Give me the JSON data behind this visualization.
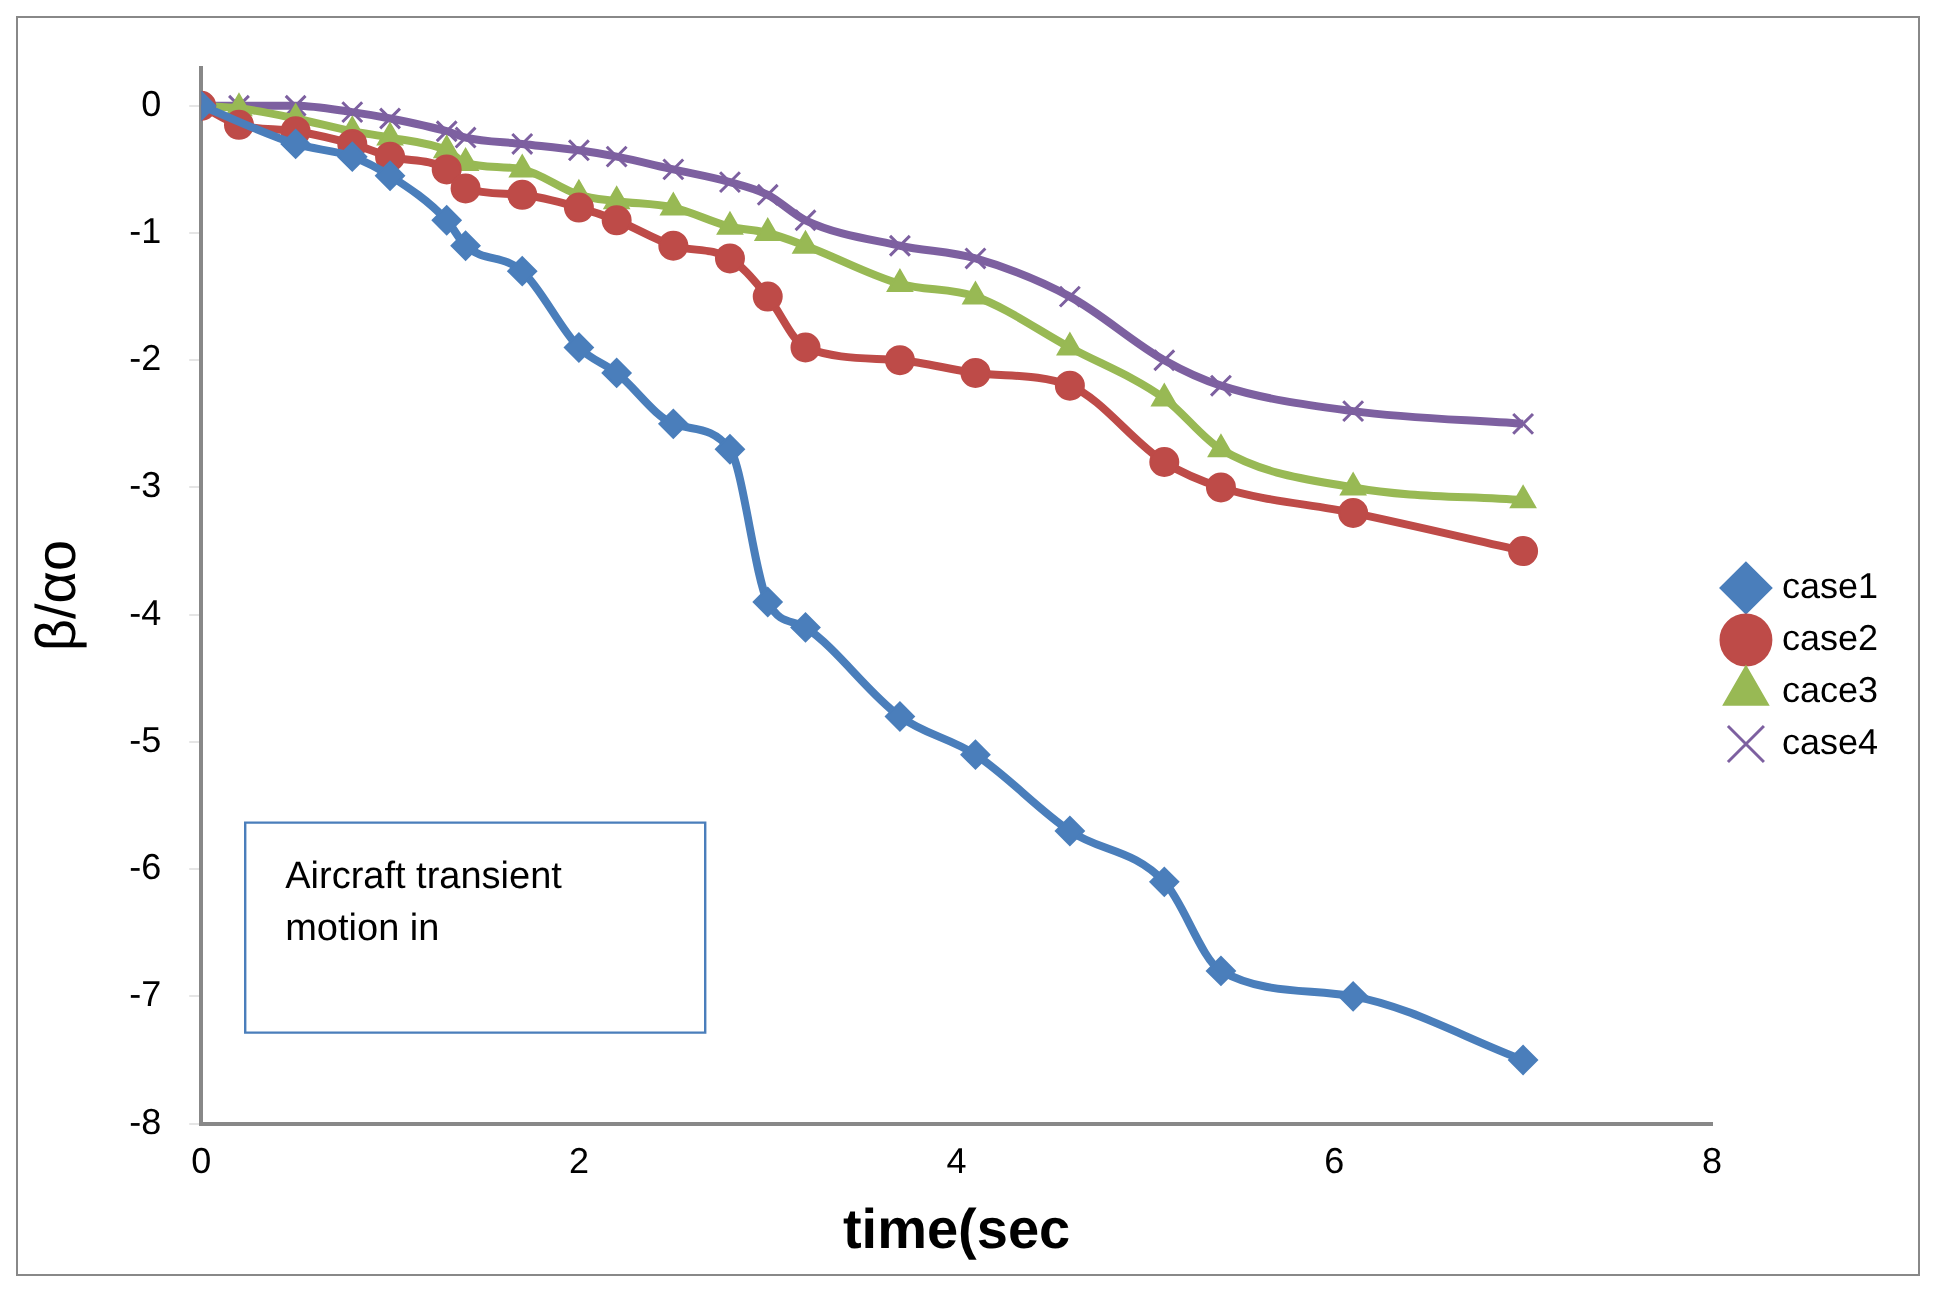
{
  "chart_data": {
    "type": "line",
    "xlabel": "time(sec",
    "ylabel": "β/αo",
    "xlim": [
      0,
      8
    ],
    "xticks": [
      0,
      2,
      4,
      6,
      8
    ],
    "ylim": [
      -8,
      0.3
    ],
    "yticks": [
      0,
      -1,
      -2,
      -3,
      -4,
      -5,
      -6,
      -7,
      -8
    ],
    "grid": false,
    "legend": "right",
    "line_style": "solid",
    "annotations": [
      "Aircraft transient motion in"
    ],
    "series": [
      {
        "name": "case1",
        "color": "#4a7ebb",
        "marker": "diamond",
        "x": [
          0,
          0.5,
          0.8,
          1,
          1.3,
          1.4,
          1.7,
          2,
          2.2,
          2.5,
          2.8,
          3,
          3.2,
          3.7,
          4.1,
          4.6,
          5.1,
          5.4,
          6.1,
          7
        ],
        "values": [
          0,
          -0.3,
          -0.4,
          -0.55,
          -0.9,
          -1.1,
          -1.3,
          -1.9,
          -2.1,
          -2.5,
          -2.7,
          -3.9,
          -4.1,
          -4.8,
          -5.1,
          -5.7,
          -6.1,
          -6.8,
          -7,
          -7.5
        ]
      },
      {
        "name": "case2",
        "color": "#be4b48",
        "marker": "circle",
        "x": [
          0,
          0.2,
          0.5,
          0.8,
          1,
          1.3,
          1.4,
          1.7,
          2,
          2.2,
          2.5,
          2.8,
          3,
          3.2,
          3.7,
          4.1,
          4.6,
          5.1,
          5.4,
          6.1,
          7
        ],
        "values": [
          0,
          -0.15,
          -0.2,
          -0.3,
          -0.4,
          -0.5,
          -0.65,
          -0.7,
          -0.8,
          -0.9,
          -1.1,
          -1.2,
          -1.5,
          -1.9,
          -2,
          -2.1,
          -2.2,
          -2.8,
          -3,
          -3.2,
          -3.5
        ]
      },
      {
        "name": "cace3",
        "color": "#98b954",
        "marker": "triangle",
        "x": [
          0,
          0.2,
          0.5,
          0.8,
          1,
          1.3,
          1.4,
          1.7,
          2,
          2.2,
          2.5,
          2.8,
          3,
          3.2,
          3.7,
          4.1,
          4.6,
          5.1,
          5.4,
          6.1,
          7
        ],
        "values": [
          0,
          -0.02,
          -0.1,
          -0.2,
          -0.25,
          -0.35,
          -0.45,
          -0.5,
          -0.7,
          -0.75,
          -0.8,
          -0.95,
          -1,
          -1.1,
          -1.4,
          -1.5,
          -1.9,
          -2.3,
          -2.7,
          -3,
          -3.1
        ]
      },
      {
        "name": "case4",
        "color": "#7d60a0",
        "marker": "cross",
        "x": [
          0,
          0.2,
          0.5,
          0.8,
          1,
          1.3,
          1.4,
          1.7,
          2,
          2.2,
          2.5,
          2.8,
          3,
          3.2,
          3.7,
          4.1,
          4.6,
          5.1,
          5.4,
          6.1,
          7
        ],
        "values": [
          0,
          0,
          0,
          -0.05,
          -0.1,
          -0.2,
          -0.25,
          -0.3,
          -0.35,
          -0.4,
          -0.5,
          -0.6,
          -0.7,
          -0.9,
          -1.1,
          -1.2,
          -1.5,
          -2,
          -2.2,
          -2.4,
          -2.5
        ]
      }
    ]
  }
}
